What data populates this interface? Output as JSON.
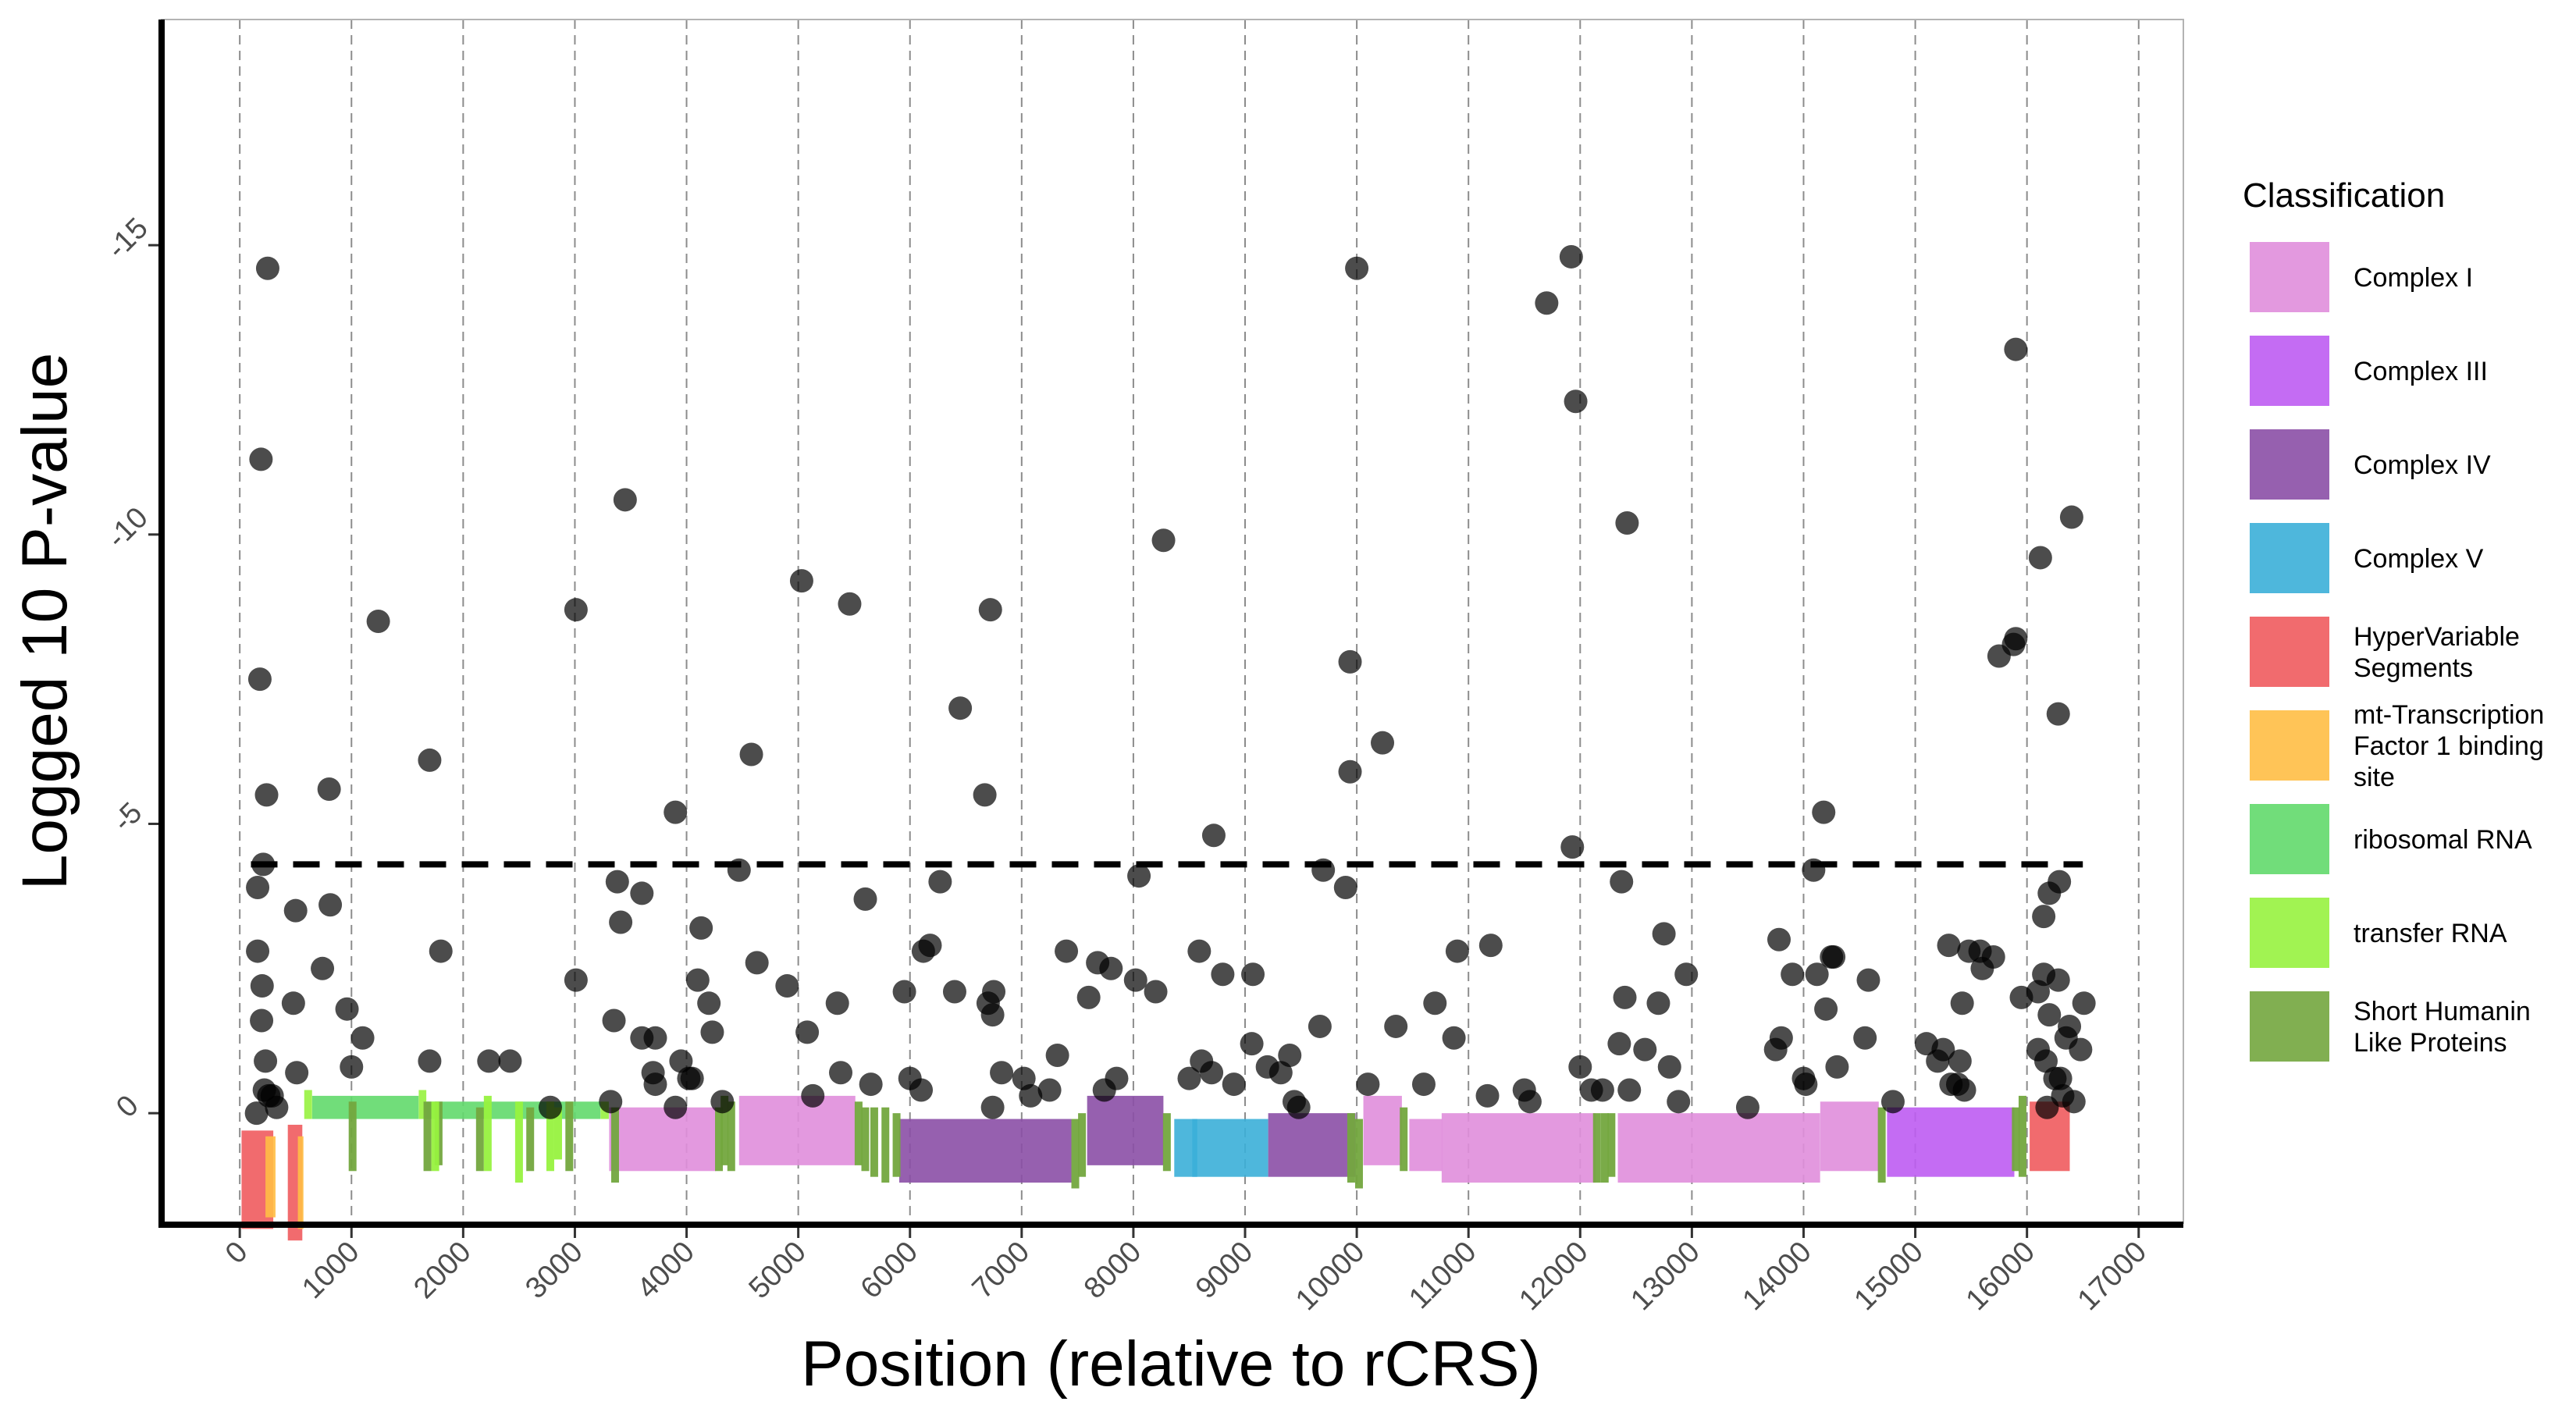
{
  "chart_data": {
    "type": "scatter",
    "title": "",
    "xlabel": "Position (relative to rCRS)",
    "ylabel": "Logged 10 P-value",
    "x_ticks": [
      0,
      1000,
      2000,
      3000,
      4000,
      5000,
      6000,
      7000,
      8000,
      9000,
      10000,
      11000,
      12000,
      13000,
      14000,
      15000,
      16000,
      17000
    ],
    "y_ticks": [
      0,
      -5,
      -10,
      -15
    ],
    "xlim": [
      -700,
      17400
    ],
    "ylim": [
      1.9,
      -18.9
    ],
    "y_reversed": true,
    "grid": "vertical dashed lines at x ticks",
    "threshold": {
      "y": -4.3,
      "style": "dashed"
    },
    "legend": {
      "title": "Classification",
      "position": "right",
      "entries": [
        {
          "key": "complex1",
          "label": [
            "Complex I"
          ],
          "color": "#E08EDC"
        },
        {
          "key": "complex3",
          "label": [
            "Complex III"
          ],
          "color": "#BE5CF2"
        },
        {
          "key": "complex4",
          "label": [
            "Complex IV"
          ],
          "color": "#8B4FA6"
        },
        {
          "key": "complex5",
          "label": [
            "Complex V"
          ],
          "color": "#3BAFD8"
        },
        {
          "key": "hvs",
          "label": [
            "HyperVariable",
            "Segments"
          ],
          "color": "#F05B5E"
        },
        {
          "key": "mttf",
          "label": [
            "mt-Transcription",
            "Factor 1 binding",
            "site"
          ],
          "color": "#FFBE45"
        },
        {
          "key": "rrna",
          "label": [
            "ribosomal RNA"
          ],
          "color": "#62D96B"
        },
        {
          "key": "trna",
          "label": [
            "transfer RNA"
          ],
          "color": "#97F23F"
        },
        {
          "key": "shlp",
          "label": [
            "Short Humanin",
            "Like Proteins"
          ],
          "color": "#73A63E"
        }
      ]
    },
    "regions": [
      {
        "cls": "hvs",
        "start": 16,
        "end": 300,
        "y0": 0.3,
        "y1": 2.0
      },
      {
        "cls": "mttf",
        "start": 230,
        "end": 320,
        "y0": 0.4,
        "y1": 1.8
      },
      {
        "cls": "hvs",
        "start": 430,
        "end": 560,
        "y0": 0.2,
        "y1": 2.2
      },
      {
        "cls": "mttf",
        "start": 520,
        "end": 570,
        "y0": 0.4,
        "y1": 2.0
      },
      {
        "cls": "rrna",
        "start": 648,
        "end": 1601,
        "y0": 0.1,
        "y1": -0.3
      },
      {
        "cls": "trna",
        "start": 577,
        "end": 647,
        "y0": 0.1,
        "y1": -0.4
      },
      {
        "cls": "trna",
        "start": 1602,
        "end": 1670,
        "y0": 0.1,
        "y1": -0.4
      },
      {
        "cls": "rrna",
        "start": 1671,
        "end": 3229,
        "y0": 0.1,
        "y1": -0.2
      },
      {
        "cls": "trna",
        "start": 3230,
        "end": 3304,
        "y0": 0.1,
        "y1": -0.2
      },
      {
        "cls": "complex1",
        "start": 3307,
        "end": 4262,
        "y0": 1.0,
        "y1": -0.1
      },
      {
        "cls": "complex1",
        "start": 4470,
        "end": 5511,
        "y0": 0.9,
        "y1": -0.3
      },
      {
        "cls": "complex4",
        "start": 5904,
        "end": 7445,
        "y0": 1.2,
        "y1": 0.1
      },
      {
        "cls": "complex4",
        "start": 7586,
        "end": 8269,
        "y0": 0.9,
        "y1": -0.3
      },
      {
        "cls": "complex5",
        "start": 8366,
        "end": 8572,
        "y0": 1.1,
        "y1": 0.1
      },
      {
        "cls": "complex5",
        "start": 8527,
        "end": 9207,
        "y0": 1.1,
        "y1": 0.1
      },
      {
        "cls": "complex4",
        "start": 9207,
        "end": 9990,
        "y0": 1.1,
        "y1": 0.0
      },
      {
        "cls": "complex1",
        "start": 10059,
        "end": 10404,
        "y0": 0.9,
        "y1": -0.3
      },
      {
        "cls": "complex1",
        "start": 10470,
        "end": 10766,
        "y0": 1.0,
        "y1": 0.1
      },
      {
        "cls": "complex1",
        "start": 10760,
        "end": 12137,
        "y0": 1.2,
        "y1": 0.0
      },
      {
        "cls": "complex1",
        "start": 12337,
        "end": 14148,
        "y0": 1.2,
        "y1": 0.0
      },
      {
        "cls": "complex1",
        "start": 14149,
        "end": 14673,
        "y0": 1.0,
        "y1": -0.2
      },
      {
        "cls": "complex3",
        "start": 14747,
        "end": 15887,
        "y0": 1.1,
        "y1": -0.1
      },
      {
        "cls": "hvs",
        "start": 16024,
        "end": 16383,
        "y0": 1.0,
        "y1": -0.2
      }
    ],
    "trna_marks": [
      {
        "x": 3360,
        "cls": "shlp",
        "y0": 1.2,
        "y1": -0.1
      },
      {
        "x": 4290,
        "cls": "shlp",
        "y0": 1.0,
        "y1": -0.1
      },
      {
        "x": 4340,
        "cls": "shlp",
        "y0": 0.9,
        "y1": -0.3
      },
      {
        "x": 4400,
        "cls": "shlp",
        "y0": 1.0,
        "y1": -0.2
      },
      {
        "x": 5540,
        "cls": "shlp",
        "y0": 0.9,
        "y1": -0.2
      },
      {
        "x": 5600,
        "cls": "shlp",
        "y0": 1.0,
        "y1": -0.1
      },
      {
        "x": 5680,
        "cls": "shlp",
        "y0": 1.1,
        "y1": -0.1
      },
      {
        "x": 5780,
        "cls": "shlp",
        "y0": 1.2,
        "y1": -0.1
      },
      {
        "x": 5880,
        "cls": "shlp",
        "y0": 1.1,
        "y1": 0.0
      },
      {
        "x": 7480,
        "cls": "shlp",
        "y0": 1.3,
        "y1": 0.1
      },
      {
        "x": 7540,
        "cls": "shlp",
        "y0": 1.1,
        "y1": 0.0
      },
      {
        "x": 8300,
        "cls": "shlp",
        "y0": 1.0,
        "y1": 0.0
      },
      {
        "x": 9950,
        "cls": "shlp",
        "y0": 1.2,
        "y1": 0.0
      },
      {
        "x": 10020,
        "cls": "shlp",
        "y0": 1.3,
        "y1": 0.1
      },
      {
        "x": 10420,
        "cls": "shlp",
        "y0": 1.0,
        "y1": -0.1
      },
      {
        "x": 12150,
        "cls": "shlp",
        "y0": 1.2,
        "y1": 0.0
      },
      {
        "x": 12220,
        "cls": "shlp",
        "y0": 1.2,
        "y1": 0.0
      },
      {
        "x": 12280,
        "cls": "shlp",
        "y0": 1.1,
        "y1": 0.0
      },
      {
        "x": 14700,
        "cls": "shlp",
        "y0": 1.2,
        "y1": -0.1
      },
      {
        "x": 15900,
        "cls": "shlp",
        "y0": 1.0,
        "y1": -0.1
      },
      {
        "x": 15960,
        "cls": "shlp",
        "y0": 1.1,
        "y1": -0.3
      },
      {
        "x": 1010,
        "cls": "shlp",
        "y0": 1.0,
        "y1": -0.2
      },
      {
        "x": 1680,
        "cls": "shlp",
        "y0": 1.0,
        "y1": -0.2
      },
      {
        "x": 1780,
        "cls": "shlp",
        "y0": 0.9,
        "y1": -0.2
      },
      {
        "x": 2150,
        "cls": "shlp",
        "y0": 1.0,
        "y1": -0.1
      },
      {
        "x": 2600,
        "cls": "shlp",
        "y0": 1.0,
        "y1": -0.1
      },
      {
        "x": 2950,
        "cls": "shlp",
        "y0": 1.0,
        "y1": -0.2
      },
      {
        "x": 1750,
        "cls": "trna",
        "y0": 1.0,
        "y1": -0.2
      },
      {
        "x": 2220,
        "cls": "trna",
        "y0": 1.0,
        "y1": -0.3
      },
      {
        "x": 2500,
        "cls": "trna",
        "y0": 1.2,
        "y1": -0.2
      },
      {
        "x": 2780,
        "cls": "trna",
        "y0": 1.0,
        "y1": -0.2
      },
      {
        "x": 2850,
        "cls": "trna",
        "y0": 0.8,
        "y1": -0.1
      }
    ],
    "points": [
      [
        150,
        0.0
      ],
      [
        160,
        -2.8
      ],
      [
        160,
        -3.9
      ],
      [
        180,
        -7.5
      ],
      [
        190,
        -11.3
      ],
      [
        195,
        -1.6
      ],
      [
        200,
        -2.2
      ],
      [
        210,
        -4.3
      ],
      [
        220,
        -0.4
      ],
      [
        230,
        -0.9
      ],
      [
        240,
        -5.5
      ],
      [
        250,
        -14.6
      ],
      [
        260,
        -0.3
      ],
      [
        290,
        -0.3
      ],
      [
        330,
        -0.1
      ],
      [
        480,
        -1.9
      ],
      [
        500,
        -3.5
      ],
      [
        510,
        -0.7
      ],
      [
        740,
        -2.5
      ],
      [
        800,
        -5.6
      ],
      [
        810,
        -3.6
      ],
      [
        960,
        -1.8
      ],
      [
        1000,
        -0.8
      ],
      [
        1100,
        -1.3
      ],
      [
        1240,
        -8.5
      ],
      [
        1700,
        -6.1
      ],
      [
        1700,
        -0.9
      ],
      [
        1800,
        -2.8
      ],
      [
        2230,
        -0.9
      ],
      [
        2420,
        -0.9
      ],
      [
        2780,
        -0.1
      ],
      [
        3010,
        -8.7
      ],
      [
        3010,
        -2.3
      ],
      [
        3320,
        -0.2
      ],
      [
        3350,
        -1.6
      ],
      [
        3380,
        -4.0
      ],
      [
        3410,
        -3.3
      ],
      [
        3450,
        -10.6
      ],
      [
        3600,
        -3.8
      ],
      [
        3600,
        -1.3
      ],
      [
        3720,
        -1.3
      ],
      [
        3700,
        -0.7
      ],
      [
        3720,
        -0.5
      ],
      [
        3900,
        -5.2
      ],
      [
        3900,
        -0.1
      ],
      [
        3950,
        -0.9
      ],
      [
        4020,
        -0.6
      ],
      [
        4050,
        -0.6
      ],
      [
        4100,
        -2.3
      ],
      [
        4130,
        -3.2
      ],
      [
        4200,
        -1.9
      ],
      [
        4230,
        -1.4
      ],
      [
        4320,
        -0.2
      ],
      [
        4470,
        -4.2
      ],
      [
        4580,
        -6.2
      ],
      [
        4630,
        -2.6
      ],
      [
        4900,
        -2.2
      ],
      [
        5030,
        -9.2
      ],
      [
        5080,
        -1.4
      ],
      [
        5130,
        -0.3
      ],
      [
        5350,
        -1.9
      ],
      [
        5380,
        -0.7
      ],
      [
        5460,
        -8.8
      ],
      [
        5600,
        -3.7
      ],
      [
        5650,
        -0.5
      ],
      [
        5950,
        -2.1
      ],
      [
        6000,
        -0.6
      ],
      [
        6100,
        -0.4
      ],
      [
        6120,
        -2.8
      ],
      [
        6180,
        -2.9
      ],
      [
        6270,
        -4.0
      ],
      [
        6400,
        -2.1
      ],
      [
        6450,
        -7.0
      ],
      [
        6670,
        -5.5
      ],
      [
        6700,
        -1.9
      ],
      [
        6720,
        -8.7
      ],
      [
        6740,
        -1.7
      ],
      [
        6740,
        -0.1
      ],
      [
        6750,
        -2.1
      ],
      [
        6820,
        -0.7
      ],
      [
        7020,
        -0.6
      ],
      [
        7080,
        -0.3
      ],
      [
        7250,
        -0.4
      ],
      [
        7320,
        -1.0
      ],
      [
        7400,
        -2.8
      ],
      [
        7600,
        -2.0
      ],
      [
        7680,
        -2.6
      ],
      [
        7740,
        -0.4
      ],
      [
        7800,
        -2.5
      ],
      [
        7850,
        -0.6
      ],
      [
        8020,
        -2.3
      ],
      [
        8050,
        -4.1
      ],
      [
        8200,
        -2.1
      ],
      [
        8270,
        -9.9
      ],
      [
        8500,
        -0.6
      ],
      [
        8590,
        -2.8
      ],
      [
        8610,
        -0.9
      ],
      [
        8700,
        -0.7
      ],
      [
        8720,
        -4.8
      ],
      [
        8800,
        -2.4
      ],
      [
        8900,
        -0.5
      ],
      [
        9060,
        -1.2
      ],
      [
        9070,
        -2.4
      ],
      [
        9200,
        -0.8
      ],
      [
        9320,
        -0.7
      ],
      [
        9400,
        -1.0
      ],
      [
        9440,
        -0.2
      ],
      [
        9480,
        -0.1
      ],
      [
        9670,
        -1.5
      ],
      [
        9700,
        -4.2
      ],
      [
        9900,
        -3.9
      ],
      [
        9940,
        -5.9
      ],
      [
        9940,
        -7.8
      ],
      [
        10000,
        -14.6
      ],
      [
        10100,
        -0.5
      ],
      [
        10230,
        -6.4
      ],
      [
        10350,
        -1.5
      ],
      [
        10600,
        -0.5
      ],
      [
        10700,
        -1.9
      ],
      [
        10870,
        -1.3
      ],
      [
        10900,
        -2.8
      ],
      [
        11170,
        -0.3
      ],
      [
        11200,
        -2.9
      ],
      [
        11500,
        -0.4
      ],
      [
        11550,
        -0.2
      ],
      [
        11700,
        -14.0
      ],
      [
        11920,
        -14.8
      ],
      [
        11930,
        -4.6
      ],
      [
        11960,
        -12.3
      ],
      [
        12000,
        -0.8
      ],
      [
        12100,
        -0.4
      ],
      [
        12200,
        -0.4
      ],
      [
        12350,
        -1.2
      ],
      [
        12370,
        -4.0
      ],
      [
        12400,
        -2.0
      ],
      [
        12420,
        -10.2
      ],
      [
        12440,
        -0.4
      ],
      [
        12580,
        -1.1
      ],
      [
        12700,
        -1.9
      ],
      [
        12750,
        -3.1
      ],
      [
        12800,
        -0.8
      ],
      [
        12880,
        -0.2
      ],
      [
        12950,
        -2.4
      ],
      [
        13500,
        -0.1
      ],
      [
        13750,
        -1.1
      ],
      [
        13780,
        -3.0
      ],
      [
        13800,
        -1.3
      ],
      [
        13900,
        -2.4
      ],
      [
        14000,
        -0.6
      ],
      [
        14020,
        -0.5
      ],
      [
        14090,
        -4.2
      ],
      [
        14120,
        -2.4
      ],
      [
        14180,
        -5.2
      ],
      [
        14200,
        -1.8
      ],
      [
        14250,
        -2.7
      ],
      [
        14270,
        -2.7
      ],
      [
        14300,
        -0.8
      ],
      [
        14550,
        -1.3
      ],
      [
        14580,
        -2.3
      ],
      [
        14800,
        -0.2
      ],
      [
        15100,
        -1.2
      ],
      [
        15200,
        -0.9
      ],
      [
        15250,
        -1.1
      ],
      [
        15300,
        -2.9
      ],
      [
        15320,
        -0.5
      ],
      [
        15380,
        -0.5
      ],
      [
        15400,
        -0.9
      ],
      [
        15420,
        -1.9
      ],
      [
        15440,
        -0.4
      ],
      [
        15480,
        -2.8
      ],
      [
        15580,
        -2.8
      ],
      [
        15600,
        -2.5
      ],
      [
        15700,
        -2.7
      ],
      [
        15750,
        -7.9
      ],
      [
        15880,
        -8.1
      ],
      [
        15900,
        -8.2
      ],
      [
        15900,
        -13.2
      ],
      [
        15950,
        -2.0
      ],
      [
        16100,
        -1.1
      ],
      [
        16100,
        -2.1
      ],
      [
        16120,
        -9.6
      ],
      [
        16150,
        -3.4
      ],
      [
        16150,
        -2.4
      ],
      [
        16170,
        -0.9
      ],
      [
        16180,
        -0.1
      ],
      [
        16200,
        -1.7
      ],
      [
        16200,
        -3.8
      ],
      [
        16250,
        -0.6
      ],
      [
        16280,
        -6.9
      ],
      [
        16280,
        -2.3
      ],
      [
        16290,
        -4.0
      ],
      [
        16300,
        -0.6
      ],
      [
        16320,
        -0.3
      ],
      [
        16350,
        -1.3
      ],
      [
        16380,
        -1.5
      ],
      [
        16400,
        -10.3
      ],
      [
        16420,
        -0.2
      ],
      [
        16480,
        -1.1
      ],
      [
        16510,
        -1.9
      ]
    ]
  }
}
